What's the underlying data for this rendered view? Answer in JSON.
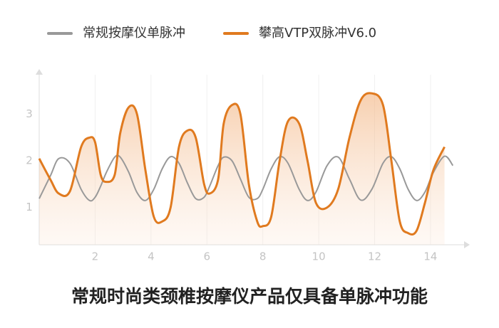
{
  "chart_data": {
    "type": "line",
    "caption": "常规时尚类颈椎按摩仪产品仅具备单脉冲功能",
    "x": [
      0,
      0.4,
      0.7,
      1.1,
      1.5,
      1.8,
      2.0,
      2.2,
      2.4,
      2.7,
      2.9,
      3.2,
      3.5,
      3.8,
      4.1,
      4.4,
      4.7,
      5.0,
      5.3,
      5.6,
      5.9,
      6.1,
      6.4,
      6.6,
      6.9,
      7.2,
      7.5,
      7.8,
      8.0,
      8.3,
      8.6,
      8.9,
      9.3,
      9.6,
      9.9,
      10.3,
      10.7,
      11.1,
      11.5,
      11.9,
      12.3,
      12.6,
      12.9,
      13.2,
      13.5,
      13.8,
      14.1,
      14.5,
      14.8
    ],
    "series": [
      {
        "name": "常规按摩仪单脉冲",
        "color": "#999999",
        "values": [
          1.19,
          1.68,
          2.05,
          1.95,
          1.39,
          1.15,
          1.22,
          1.46,
          1.75,
          2.08,
          2.08,
          1.76,
          1.32,
          1.15,
          1.39,
          1.83,
          2.09,
          1.95,
          1.53,
          1.19,
          1.22,
          1.46,
          1.9,
          2.08,
          2.0,
          1.61,
          1.22,
          1.19,
          1.39,
          1.83,
          2.09,
          1.95,
          1.39,
          1.15,
          1.33,
          1.9,
          2.08,
          1.61,
          1.16,
          1.39,
          1.95,
          2.09,
          1.83,
          1.39,
          1.15,
          1.33,
          1.75,
          2.1,
          1.9
        ]
      },
      {
        "name": "攀高VTP双脉冲V6.0",
        "color": "#e07a1f",
        "values": [
          2.05,
          1.6,
          1.3,
          1.35,
          2.3,
          2.5,
          2.4,
          1.7,
          1.55,
          1.7,
          2.6,
          3.15,
          3.0,
          1.8,
          0.8,
          0.7,
          1.0,
          2.3,
          2.65,
          2.5,
          1.5,
          1.3,
          1.6,
          2.8,
          3.2,
          3.0,
          1.5,
          0.7,
          0.6,
          0.8,
          2.0,
          2.85,
          2.8,
          2.0,
          1.1,
          1.0,
          1.4,
          2.5,
          3.3,
          3.45,
          3.2,
          2.0,
          0.7,
          0.45,
          0.5,
          1.1,
          1.8,
          2.3,
          null
        ]
      }
    ],
    "xlim": [
      0,
      15.2
    ],
    "ylim": [
      0.2,
      3.85
    ],
    "xticks": [
      2,
      4,
      6,
      8,
      10,
      12,
      14
    ],
    "yticks": [
      1,
      2,
      3
    ],
    "grid": true
  }
}
